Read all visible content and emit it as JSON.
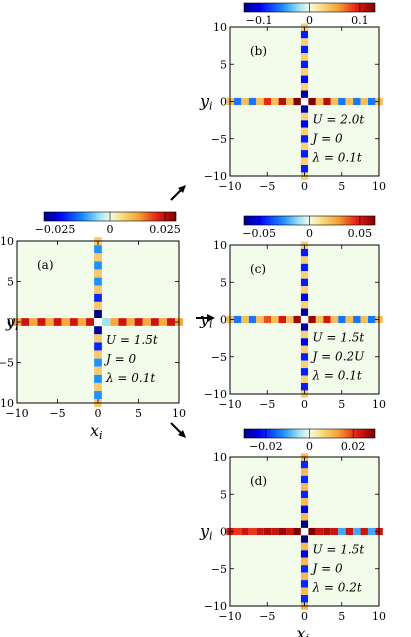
{
  "chart_data": [
    {
      "type": "heatmap",
      "panel": "(a)",
      "xlabel": "x_i",
      "ylabel": "y_i",
      "xlim": [
        -10,
        10
      ],
      "ylim": [
        -10,
        10
      ],
      "x_ticks": [
        "−10",
        "−5",
        "0",
        "5",
        "10"
      ],
      "y_ticks": [
        "10",
        "5",
        "0",
        "−5",
        "−10"
      ],
      "colorbar": {
        "min": -0.03,
        "max": 0.03,
        "ticks": [
          -0.025,
          0,
          0.025
        ],
        "tick_labels": [
          "−0.025",
          "0",
          "0.025"
        ]
      },
      "annotations": [
        "U = 1.5t",
        "J = 0",
        "λ = 0.1t"
      ],
      "horizontal_line": [
        0.012,
        0.024,
        0.012,
        0.024,
        0.012,
        0.024,
        0.012,
        0.024,
        0.012,
        0.024,
        0.0,
        -0.005,
        0.012,
        0.024,
        0.012,
        0.024,
        0.012,
        0.024,
        0.012,
        0.024,
        0.012
      ],
      "vertical_line": [
        0.008,
        -0.012,
        0.008,
        -0.012,
        0.008,
        -0.012,
        0.008,
        -0.02,
        0.008,
        -0.03,
        0.0,
        -0.028,
        0.008,
        -0.02,
        0.008,
        -0.012,
        0.008,
        -0.012,
        0.008,
        -0.012,
        0.008
      ]
    },
    {
      "type": "heatmap",
      "panel": "(b)",
      "xlabel": "",
      "ylabel": "y_i",
      "xlim": [
        -10,
        10
      ],
      "ylim": [
        -10,
        10
      ],
      "x_ticks": [
        "−10",
        "−5",
        "0",
        "5",
        "10"
      ],
      "y_ticks": [
        "10",
        "5",
        "0",
        "−5",
        "−10"
      ],
      "colorbar": {
        "min": -0.13,
        "max": 0.13,
        "ticks": [
          -0.1,
          0,
          0.1
        ],
        "tick_labels": [
          "−0.1",
          "0",
          "0.1"
        ]
      },
      "annotations": [
        "U = 2.0t",
        "J = 0",
        "λ = 0.1t"
      ],
      "horizontal_line": [
        0.04,
        -0.06,
        0.04,
        -0.06,
        0.04,
        0.09,
        0.04,
        0.11,
        0.04,
        0.13,
        0.0,
        0.13,
        0.04,
        0.11,
        0.04,
        -0.06,
        0.04,
        -0.06,
        0.04,
        -0.06,
        0.04
      ],
      "vertical_line": [
        0.03,
        -0.09,
        0.03,
        -0.09,
        0.03,
        -0.09,
        0.03,
        -0.1,
        0.03,
        -0.12,
        0.0,
        -0.12,
        0.03,
        -0.1,
        0.03,
        -0.09,
        0.03,
        -0.09,
        0.03,
        -0.09,
        0.03
      ]
    },
    {
      "type": "heatmap",
      "panel": "(c)",
      "xlabel": "",
      "ylabel": "y_i",
      "xlim": [
        -10,
        10
      ],
      "ylim": [
        -10,
        10
      ],
      "x_ticks": [
        "−10",
        "−5",
        "0",
        "5",
        "10"
      ],
      "y_ticks": [
        "10",
        "5",
        "0",
        "−5",
        "−10"
      ],
      "colorbar": {
        "min": -0.065,
        "max": 0.065,
        "ticks": [
          -0.05,
          0,
          0.05
        ],
        "tick_labels": [
          "−0.05",
          "0",
          "0.05"
        ]
      },
      "annotations": [
        "U = 1.5t",
        "J = 0.2U",
        "λ = 0.1t"
      ],
      "horizontal_line": [
        0.02,
        -0.03,
        0.02,
        -0.03,
        0.02,
        0.04,
        0.02,
        0.05,
        0.02,
        0.06,
        0.0,
        0.06,
        0.02,
        0.05,
        0.02,
        -0.03,
        0.02,
        -0.03,
        0.02,
        -0.03,
        0.02
      ],
      "vertical_line": [
        0.015,
        -0.045,
        0.015,
        -0.045,
        0.015,
        -0.045,
        0.015,
        -0.05,
        0.015,
        -0.06,
        0.0,
        -0.06,
        0.015,
        -0.05,
        0.015,
        -0.045,
        0.015,
        -0.045,
        0.015,
        -0.045,
        0.015
      ]
    },
    {
      "type": "heatmap",
      "panel": "(d)",
      "xlabel": "x_i",
      "ylabel": "y_i",
      "xlim": [
        -10,
        10
      ],
      "ylim": [
        -10,
        10
      ],
      "x_ticks": [
        "−10",
        "−5",
        "0",
        "5",
        "10"
      ],
      "y_ticks": [
        "10",
        "5",
        "0",
        "−5",
        "−10"
      ],
      "colorbar": {
        "min": -0.03,
        "max": 0.03,
        "ticks": [
          -0.02,
          0,
          0.02
        ],
        "tick_labels": [
          "−0.02",
          "0",
          "0.02"
        ]
      },
      "annotations": [
        "U = 1.5t",
        "J = 0",
        "λ = 0.2t"
      ],
      "horizontal_line": [
        0.024,
        0.02,
        0.024,
        0.02,
        0.024,
        0.026,
        0.024,
        0.028,
        0.024,
        0.03,
        0.0,
        0.03,
        0.024,
        0.026,
        0.024,
        -0.01,
        0.024,
        -0.01,
        0.024,
        -0.01,
        0.024
      ],
      "vertical_line": [
        0.01,
        -0.02,
        0.01,
        -0.02,
        0.01,
        -0.02,
        0.01,
        -0.025,
        0.01,
        -0.03,
        0.0,
        -0.03,
        0.01,
        -0.025,
        0.01,
        -0.02,
        0.01,
        -0.02,
        0.01,
        -0.02,
        0.01
      ]
    }
  ]
}
